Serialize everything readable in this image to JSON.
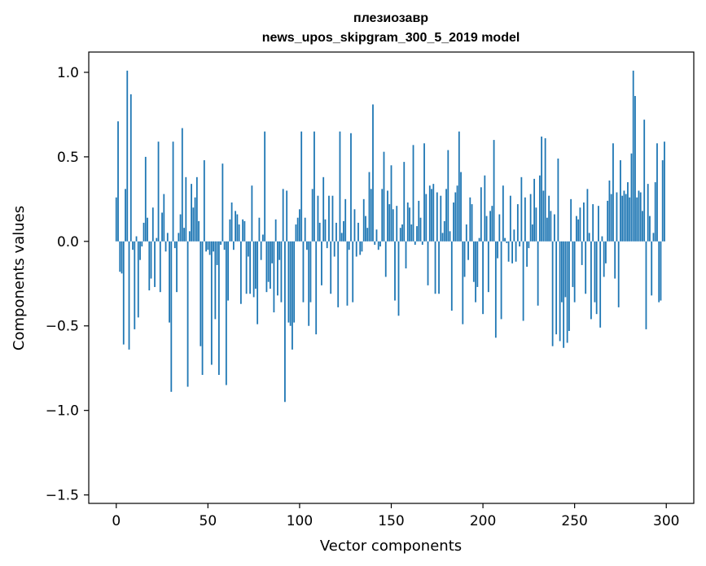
{
  "chart_data": {
    "type": "bar",
    "title": "плезиозавр",
    "subtitle": "news_upos_skipgram_300_5_2019 model",
    "xlabel": "Vector components",
    "ylabel": "Components values",
    "xlim": [
      -15,
      315
    ],
    "ylim": [
      -1.55,
      1.12
    ],
    "xticks": [
      0,
      50,
      100,
      150,
      200,
      250,
      300
    ],
    "xtick_labels": [
      "0",
      "50",
      "100",
      "150",
      "200",
      "250",
      "300"
    ],
    "yticks": [
      -1.5,
      -1.0,
      -0.5,
      0.0,
      0.5,
      1.0
    ],
    "ytick_labels": [
      "−1.5",
      "−1.0",
      "−0.5",
      "0.0",
      "0.5",
      "1.0"
    ],
    "grid": false,
    "bar_color": "#1f77b4",
    "values": [
      0.26,
      0.71,
      -0.18,
      -0.19,
      -0.61,
      0.31,
      1.01,
      -0.64,
      0.87,
      -0.05,
      -0.52,
      0.03,
      -0.45,
      -0.11,
      -0.03,
      0.11,
      0.5,
      0.14,
      -0.29,
      -0.22,
      0.2,
      -0.27,
      0.02,
      0.59,
      -0.3,
      0.17,
      0.28,
      -0.06,
      0.05,
      -0.48,
      -0.89,
      0.59,
      -0.04,
      -0.3,
      0.05,
      0.16,
      0.67,
      0.08,
      0.38,
      -0.86,
      0.06,
      0.34,
      0.2,
      0.26,
      0.38,
      0.12,
      -0.62,
      -0.79,
      0.48,
      -0.06,
      -0.05,
      -0.08,
      -0.73,
      -0.06,
      -0.46,
      -0.14,
      -0.79,
      -0.02,
      0.46,
      -0.05,
      -0.85,
      -0.35,
      0.13,
      0.23,
      -0.05,
      0.18,
      0.16,
      0.1,
      -0.37,
      0.13,
      0.12,
      -0.31,
      -0.09,
      -0.31,
      0.33,
      -0.33,
      -0.28,
      -0.49,
      0.14,
      -0.11,
      0.04,
      0.65,
      -0.3,
      -0.24,
      -0.28,
      -0.13,
      -0.42,
      0.13,
      -0.32,
      -0.11,
      -0.36,
      0.31,
      -0.95,
      0.3,
      -0.48,
      -0.5,
      -0.64,
      -0.48,
      0.1,
      0.14,
      0.19,
      0.65,
      -0.36,
      0.14,
      -0.05,
      -0.5,
      -0.36,
      0.31,
      0.65,
      -0.55,
      0.27,
      0.11,
      -0.26,
      0.38,
      0.13,
      -0.04,
      0.27,
      -0.31,
      0.27,
      -0.09,
      0.11,
      -0.39,
      0.65,
      0.05,
      0.12,
      0.25,
      -0.38,
      -0.05,
      0.64,
      -0.36,
      0.19,
      -0.09,
      0.11,
      -0.08,
      -0.06,
      0.25,
      0.15,
      0.08,
      0.41,
      0.31,
      0.81,
      -0.02,
      0.07,
      -0.05,
      -0.03,
      0.31,
      0.53,
      -0.21,
      0.3,
      0.22,
      0.45,
      0.19,
      -0.35,
      0.21,
      -0.44,
      0.08,
      0.1,
      0.47,
      -0.16,
      0.23,
      0.2,
      0.1,
      0.57,
      -0.02,
      0.09,
      0.24,
      0.14,
      -0.02,
      0.58,
      0.28,
      -0.26,
      0.33,
      0.31,
      0.34,
      -0.31,
      0.29,
      -0.31,
      0.27,
      0.05,
      0.12,
      0.31,
      0.54,
      0.06,
      -0.41,
      0.23,
      0.29,
      0.33,
      0.65,
      0.41,
      -0.49,
      -0.21,
      0.1,
      -0.11,
      0.26,
      0.22,
      -0.24,
      -0.36,
      -0.27,
      0.02,
      0.32,
      -0.43,
      0.39,
      0.15,
      -0.3,
      0.18,
      0.21,
      0.6,
      -0.57,
      -0.1,
      0.16,
      -0.46,
      0.33,
      0.02,
      -0.01,
      -0.12,
      0.27,
      -0.13,
      0.07,
      -0.12,
      0.22,
      -0.03,
      0.38,
      -0.47,
      0.26,
      -0.15,
      -0.04,
      0.28,
      0.1,
      0.37,
      0.2,
      -0.38,
      0.39,
      0.62,
      0.3,
      0.61,
      0.14,
      0.27,
      0.18,
      -0.62,
      0.16,
      -0.55,
      0.49,
      -0.59,
      -0.36,
      -0.63,
      -0.33,
      -0.6,
      -0.53,
      0.25,
      -0.27,
      -0.36,
      0.15,
      0.13,
      0.2,
      -0.14,
      0.23,
      -0.31,
      0.31,
      0.05,
      -0.46,
      0.22,
      -0.36,
      -0.43,
      0.21,
      -0.51,
      0.03,
      -0.21,
      -0.13,
      0.24,
      0.36,
      0.28,
      0.58,
      -0.22,
      0.29,
      -0.39,
      0.48,
      0.27,
      0.3,
      0.28,
      0.35,
      0.26,
      0.52,
      1.01,
      0.86,
      0.26,
      0.3,
      0.29,
      0.18,
      0.72,
      -0.52,
      0.34,
      0.15,
      -0.32,
      0.05,
      0.35,
      0.58,
      -0.36,
      -0.35,
      0.48,
      0.59
    ]
  }
}
